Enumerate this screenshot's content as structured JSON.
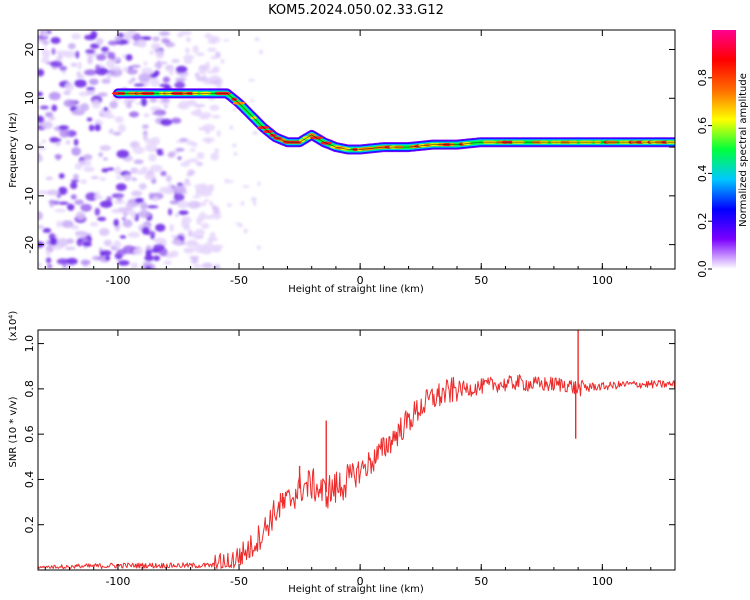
{
  "title": "KOM5.2024.050.02.33.G12",
  "chart_data": [
    {
      "type": "heatmap",
      "xlabel": "Height of straight line (km)",
      "ylabel": "Frequency (Hz)",
      "xlim": [
        -133,
        130
      ],
      "ylim": [
        -25,
        24
      ],
      "xticks": [
        -100,
        -50,
        0,
        50,
        100
      ],
      "yticks": [
        -20,
        -10,
        0,
        10,
        20
      ],
      "colorbar": {
        "label": "Normalized spectral amplitude",
        "range": [
          0,
          1
        ],
        "ticks": [
          "0.0",
          "0.2",
          "0.4",
          "0.6",
          "0.8"
        ],
        "tick_values": [
          0.0,
          0.2,
          0.4,
          0.6,
          0.8
        ],
        "colors": [
          "#ffffff",
          "#7a00ff",
          "#0000ff",
          "#00c8ff",
          "#00ff3c",
          "#ffff00",
          "#ff6a00",
          "#ff0000",
          "#ff0090"
        ]
      },
      "trace": {
        "x": [
          -100,
          -90,
          -80,
          -70,
          -60,
          -55,
          -50,
          -45,
          -40,
          -35,
          -30,
          -25,
          -20,
          -15,
          -10,
          -5,
          0,
          10,
          20,
          30,
          40,
          50,
          60,
          70,
          80,
          90,
          100,
          110,
          120,
          130
        ],
        "y": [
          11,
          11,
          11,
          11,
          11,
          11,
          9,
          6.5,
          4,
          2,
          1,
          1,
          2.5,
          1,
          0,
          -0.5,
          -0.5,
          0,
          0,
          0.5,
          0.5,
          1,
          1,
          1,
          1,
          1,
          1,
          1,
          1,
          1
        ]
      },
      "noise_region_x": [
        -133,
        -62
      ]
    },
    {
      "type": "line",
      "xlabel": "Height of straight line (km)",
      "ylabel": "SNR (10 * v/v)",
      "y_multiplier": "(x10⁴)",
      "xlim": [
        -133,
        130
      ],
      "ylim": [
        0,
        1.06
      ],
      "xticks": [
        -100,
        -50,
        0,
        50,
        100
      ],
      "yticks": [
        0.2,
        0.4,
        0.6,
        0.8,
        1.0
      ],
      "ytick_labels": [
        "0.2",
        "0.4",
        "0.6",
        "0.8",
        "1.0"
      ],
      "color": "#ee2b2b",
      "series": [
        {
          "x": [
            -133,
            -100,
            -80,
            -60,
            -55,
            -50,
            -45,
            -40,
            -35,
            -30,
            -25,
            -20,
            -15,
            -10,
            -5,
            0,
            5,
            10,
            15,
            20,
            25,
            30,
            35,
            40,
            45,
            50,
            55,
            60,
            65,
            70,
            75,
            80,
            85,
            90,
            95,
            100,
            110,
            120,
            130
          ],
          "values": [
            0.01,
            0.02,
            0.02,
            0.02,
            0.03,
            0.06,
            0.1,
            0.17,
            0.26,
            0.3,
            0.36,
            0.38,
            0.34,
            0.36,
            0.4,
            0.44,
            0.48,
            0.54,
            0.6,
            0.66,
            0.72,
            0.76,
            0.78,
            0.8,
            0.8,
            0.81,
            0.82,
            0.82,
            0.83,
            0.82,
            0.82,
            0.82,
            0.82,
            0.8,
            0.81,
            0.81,
            0.82,
            0.82,
            0.82
          ]
        }
      ],
      "spikes": [
        {
          "x": -32,
          "y": 0.34
        },
        {
          "x": -25,
          "y": 0.46
        },
        {
          "x": -14,
          "y": 0.66
        },
        {
          "x": 90,
          "y": 1.06
        },
        {
          "x": 89,
          "y": 0.58
        }
      ]
    }
  ]
}
